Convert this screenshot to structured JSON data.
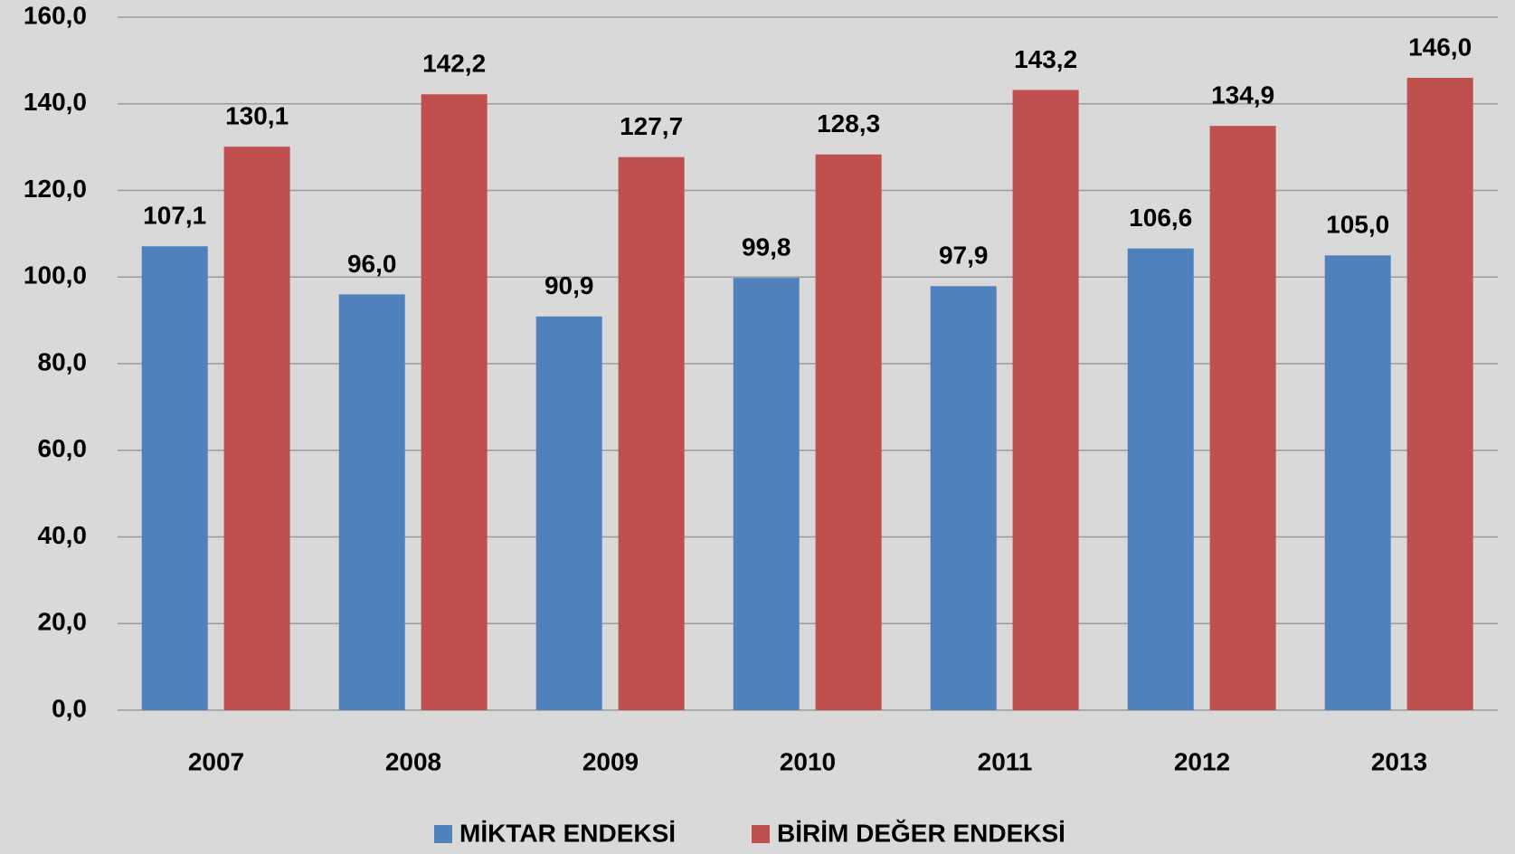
{
  "chart_data": {
    "type": "bar",
    "categories": [
      "2007",
      "2008",
      "2009",
      "2010",
      "2011",
      "2012",
      "2013"
    ],
    "series": [
      {
        "name": "MİKTAR ENDEKSİ",
        "color": "#4f81bd",
        "values": [
          107.1,
          96.0,
          90.9,
          99.8,
          97.9,
          106.6,
          105.0
        ],
        "value_labels": [
          "107,1",
          "96,0",
          "90,9",
          "99,8",
          "97,9",
          "106,6",
          "105,0"
        ]
      },
      {
        "name": "BİRİM DEĞER ENDEKSİ",
        "color": "#c0504d",
        "values": [
          130.1,
          142.2,
          127.7,
          128.3,
          143.2,
          134.9,
          146.0
        ],
        "value_labels": [
          "130,1",
          "142,2",
          "127,7",
          "128,3",
          "143,2",
          "134,9",
          "146,0"
        ]
      }
    ],
    "ylim": [
      0,
      160
    ],
    "yticks": [
      {
        "value": 0,
        "label": "0,0"
      },
      {
        "value": 20,
        "label": "20,0"
      },
      {
        "value": 40,
        "label": "40,0"
      },
      {
        "value": 60,
        "label": "60,0"
      },
      {
        "value": 80,
        "label": "80,0"
      },
      {
        "value": 100,
        "label": "100,0"
      },
      {
        "value": 120,
        "label": "120,0"
      },
      {
        "value": 140,
        "label": "140,0"
      },
      {
        "value": 160,
        "label": "160,0"
      }
    ],
    "grid": true,
    "legend": "bottom"
  }
}
